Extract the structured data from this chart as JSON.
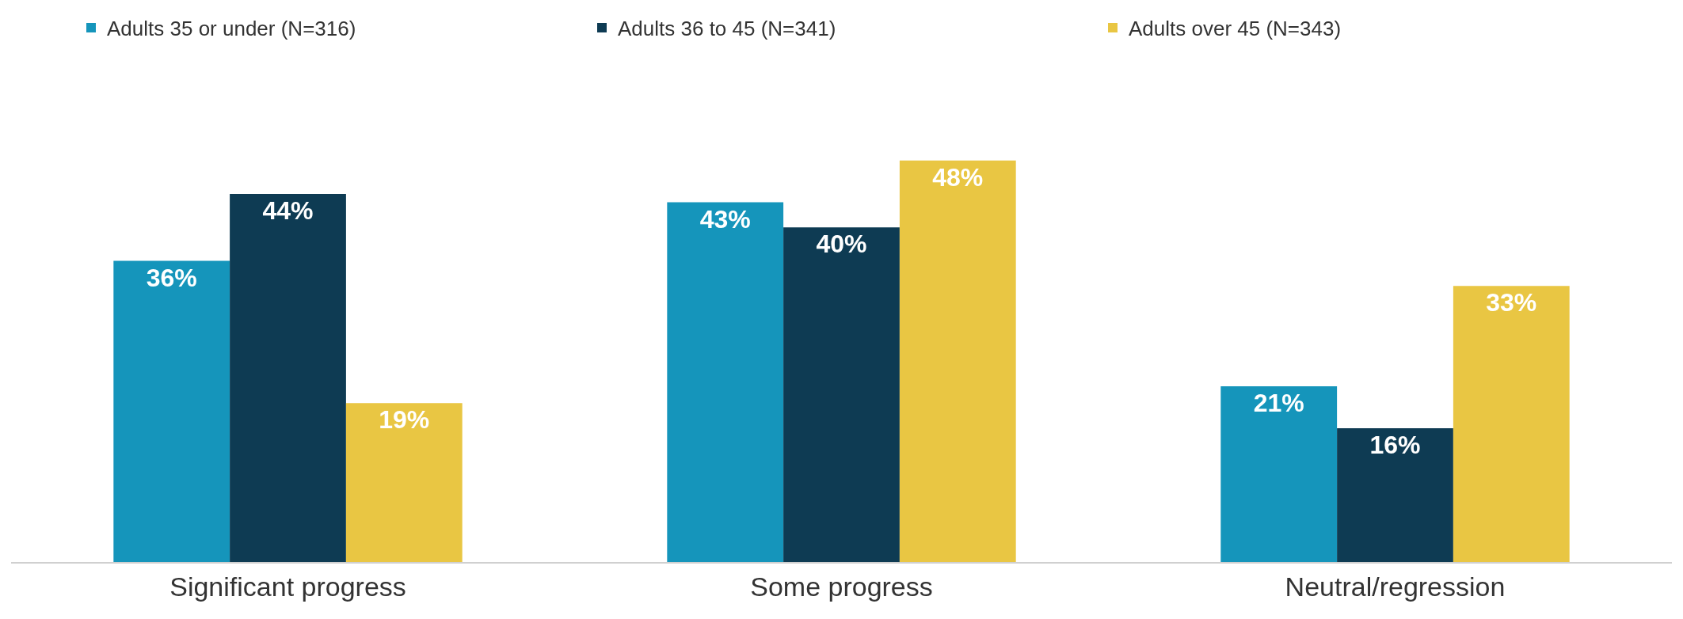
{
  "chart_data": {
    "type": "bar",
    "categories": [
      "Significant progress",
      "Some progress",
      "Neutral/regression"
    ],
    "series": [
      {
        "name": "Adults 35 or under (N=316)",
        "color": "#1595bb",
        "values": [
          36,
          43,
          21
        ],
        "value_labels": [
          "36%",
          "43%",
          "21%"
        ]
      },
      {
        "name": "Adults 36 to 45 (N=341)",
        "color": "#0e3b53",
        "values": [
          44,
          40,
          16
        ],
        "value_labels": [
          "44%",
          "40%",
          "16%"
        ]
      },
      {
        "name": "Adults over 45 (N=343)",
        "color": "#e9c643",
        "values": [
          19,
          48,
          33
        ],
        "value_labels": [
          "19%",
          "48%",
          "33%"
        ]
      }
    ],
    "legend": "top",
    "grid": false
  }
}
